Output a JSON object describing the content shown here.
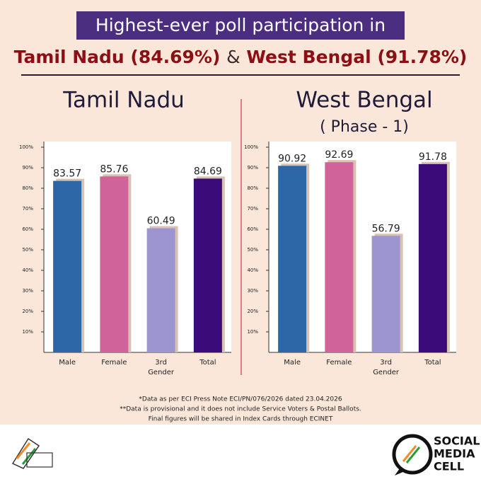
{
  "header": {
    "title": "Highest-ever poll participation in",
    "subtitle_parts": [
      "Tamil Nadu (84.69%)",
      "&",
      "West Bengal (91.78%)"
    ]
  },
  "chart_data": [
    {
      "type": "bar",
      "title": "Tamil Nadu",
      "categories": [
        "Male",
        "Female",
        "3rd Gender",
        "Total"
      ],
      "values": [
        83.57,
        85.76,
        60.49,
        84.69
      ],
      "colors": [
        "#2d67a8",
        "#d0649a",
        "#9c95cf",
        "#3b0b7a"
      ],
      "ylim": [
        0,
        100
      ],
      "yticks": [
        {
          "value": 10,
          "label": "10%"
        },
        {
          "value": 20,
          "label": "20%"
        },
        {
          "value": 30,
          "label": "30%"
        },
        {
          "value": 40,
          "label": "40%"
        },
        {
          "value": 50,
          "label": "50%"
        },
        {
          "value": 60,
          "label": "60%"
        },
        {
          "value": 70,
          "label": "70%"
        },
        {
          "value": 80,
          "label": "80%"
        },
        {
          "value": 90,
          "label": "90%"
        },
        {
          "value": 100,
          "label": "100%"
        }
      ]
    },
    {
      "type": "bar",
      "title": "West Bengal",
      "subtitle": "( Phase - 1)",
      "categories": [
        "Male",
        "Female",
        "3rd Gender",
        "Total"
      ],
      "values": [
        90.92,
        92.69,
        56.79,
        91.78
      ],
      "colors": [
        "#2d67a8",
        "#d0649a",
        "#9c95cf",
        "#3b0b7a"
      ],
      "ylim": [
        0,
        100
      ],
      "yticks": [
        {
          "value": 10,
          "label": "10%"
        },
        {
          "value": 20,
          "label": "20%"
        },
        {
          "value": 30,
          "label": "30%"
        },
        {
          "value": 40,
          "label": "40%"
        },
        {
          "value": 50,
          "label": "50%"
        },
        {
          "value": 60,
          "label": "60%"
        },
        {
          "value": 70,
          "label": "70%"
        },
        {
          "value": 80,
          "label": "80%"
        },
        {
          "value": 90,
          "label": "90%"
        },
        {
          "value": 100,
          "label": "100%"
        }
      ]
    }
  ],
  "footnotes": [
    "*Data as per ECI Press Note ECI/PN/076/2026 dated 23.04.2026",
    "**Data is provisional and it does not include Service Voters & Postal Ballots.",
    "Final figures will be shared in Index Cards through ECINET"
  ],
  "footer": {
    "logo_text": [
      "SOCIAL",
      "MEDIA",
      "CELL"
    ]
  }
}
